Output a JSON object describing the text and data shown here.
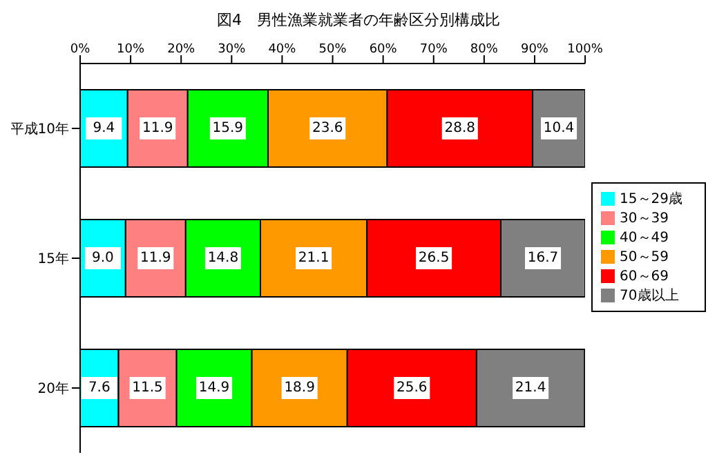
{
  "chart_data": {
    "type": "bar",
    "orientation": "horizontal",
    "stacked": true,
    "title": "図4　男性漁業就業者の年齢区分別構成比",
    "categories": [
      "平成10年",
      "15年",
      "20年"
    ],
    "series": [
      {
        "name": "15～29歳",
        "color": "#00ffff",
        "values": [
          9.4,
          9.0,
          7.6
        ],
        "value_labels": [
          "9.4",
          "9.0",
          "7.6"
        ]
      },
      {
        "name": "30～39",
        "color": "#ff8080",
        "values": [
          11.9,
          11.9,
          11.5
        ],
        "value_labels": [
          "11.9",
          "11.9",
          "11.5"
        ]
      },
      {
        "name": "40～49",
        "color": "#00ff00",
        "values": [
          15.9,
          14.8,
          14.9
        ],
        "value_labels": [
          "15.9",
          "14.8",
          "14.9"
        ]
      },
      {
        "name": "50～59",
        "color": "#ff9900",
        "values": [
          23.6,
          21.1,
          18.9
        ],
        "value_labels": [
          "23.6",
          "21.1",
          "18.9"
        ]
      },
      {
        "name": "60～69",
        "color": "#ff0000",
        "values": [
          28.8,
          26.5,
          25.6
        ],
        "value_labels": [
          "28.8",
          "26.5",
          "25.6"
        ]
      },
      {
        "name": "70歳以上",
        "color": "#808080",
        "values": [
          10.4,
          16.7,
          21.4
        ],
        "value_labels": [
          "10.4",
          "16.7",
          "21.4"
        ]
      }
    ],
    "xlim": [
      0,
      100
    ],
    "xticks": [
      {
        "value": 0,
        "label": "0%"
      },
      {
        "value": 10,
        "label": "10%"
      },
      {
        "value": 20,
        "label": "20%"
      },
      {
        "value": 30,
        "label": "30%"
      },
      {
        "value": 40,
        "label": "40%"
      },
      {
        "value": 50,
        "label": "50%"
      },
      {
        "value": 60,
        "label": "60%"
      },
      {
        "value": 70,
        "label": "70%"
      },
      {
        "value": 80,
        "label": "80%"
      },
      {
        "value": 90,
        "label": "90%"
      },
      {
        "value": 100,
        "label": "100%"
      }
    ],
    "grid": false,
    "legend": "right"
  }
}
